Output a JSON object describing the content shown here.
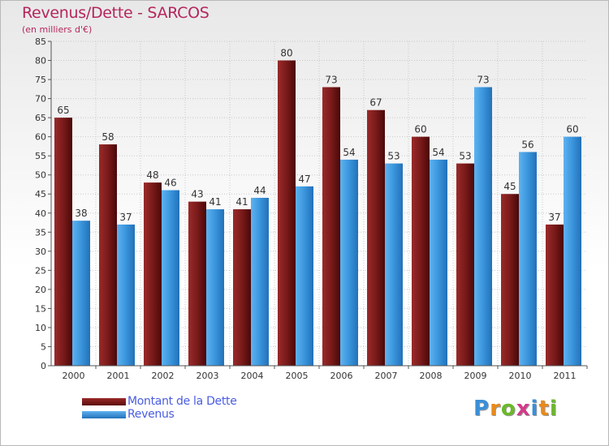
{
  "title": "Revenus/Dette - SARCOS",
  "subtitle": "(en milliers d'€)",
  "logo_text": "Proxiti",
  "colors": {
    "debt": "#7a1a1a",
    "revenue": "#3a95dc",
    "title": "#b5265d",
    "legend_text": "#4a5de0"
  },
  "chart_data": {
    "type": "bar",
    "categories": [
      "2000",
      "2001",
      "2002",
      "2003",
      "2004",
      "2005",
      "2006",
      "2007",
      "2008",
      "2009",
      "2010",
      "2011"
    ],
    "series": [
      {
        "name": "Montant de la Dette",
        "values": [
          65,
          58,
          48,
          43,
          41,
          80,
          73,
          67,
          60,
          53,
          45,
          37
        ]
      },
      {
        "name": "Revenus",
        "values": [
          38,
          37,
          46,
          41,
          44,
          47,
          54,
          53,
          54,
          73,
          56,
          60
        ]
      }
    ],
    "ylim": [
      0,
      85
    ],
    "yticks": [
      0,
      5,
      10,
      15,
      20,
      25,
      30,
      35,
      40,
      45,
      50,
      55,
      60,
      65,
      70,
      75,
      80,
      85
    ],
    "grid": true,
    "legend_position": "bottom-left"
  }
}
